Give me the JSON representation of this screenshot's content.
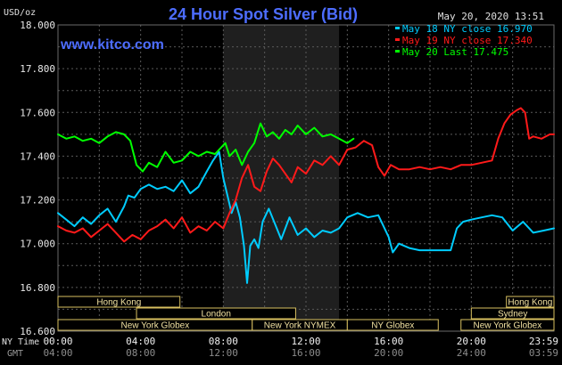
{
  "chart_data": {
    "type": "line",
    "title": "24 Hour Spot Silver (Bid)",
    "brand": "www.kitco.com",
    "timestamp": "May 20, 2020 13:51",
    "ylabel": "USD/oz",
    "ylim": [
      16.6,
      18.0
    ],
    "yticks": [
      "16.600",
      "16.800",
      "17.000",
      "17.200",
      "17.400",
      "17.600",
      "17.800",
      "18.000"
    ],
    "xlim": [
      0,
      24
    ],
    "xticks_ny": [
      "00:00",
      "04:00",
      "08:00",
      "12:00",
      "16:00",
      "20:00",
      "23:59"
    ],
    "xticks_gmt": [
      "04:00",
      "08:00",
      "12:00",
      "16:00",
      "20:00",
      "24:00",
      "03:59"
    ],
    "row_label_ny": "NY Time",
    "row_label_gmt": "GMT",
    "grid": true,
    "legend": "top-right",
    "highlight_hours": [
      8.0,
      13.6
    ],
    "sessions": [
      {
        "label": "Hong Kong",
        "start": 0.0,
        "end": 5.9,
        "row": 0
      },
      {
        "label": "London",
        "start": 3.8,
        "end": 11.5,
        "row": 1
      },
      {
        "label": "New York Globex",
        "start": 0.0,
        "end": 9.4,
        "row": 2
      },
      {
        "label": "New York NYMEX",
        "start": 9.4,
        "end": 14.0,
        "row": 2
      },
      {
        "label": "NY Globex",
        "start": 14.0,
        "end": 18.4,
        "row": 2
      },
      {
        "label": "Hong Kong",
        "start": 21.7,
        "end": 24.0,
        "row": 0
      },
      {
        "label": "Sydney",
        "start": 20.0,
        "end": 24.0,
        "row": 1
      },
      {
        "label": "New York Globex",
        "start": 19.5,
        "end": 24.0,
        "row": 2
      }
    ],
    "series": [
      {
        "name": "May 18 NY close 16.970",
        "color": "#00ccff",
        "x": [
          0,
          0.4,
          0.8,
          1.2,
          1.6,
          2.0,
          2.4,
          2.8,
          3.2,
          3.4,
          3.7,
          4.0,
          4.4,
          4.8,
          5.2,
          5.6,
          6.0,
          6.4,
          6.8,
          7.2,
          7.5,
          7.8,
          8.0,
          8.2,
          8.4,
          8.6,
          8.8,
          9.0,
          9.15,
          9.3,
          9.5,
          9.7,
          9.9,
          10.2,
          10.5,
          10.8,
          11.2,
          11.6,
          12.0,
          12.4,
          12.8,
          13.2,
          13.6,
          14.0,
          14.5,
          15.0,
          15.5,
          16.0,
          16.2,
          16.5,
          17.0,
          17.5,
          18.0,
          18.5,
          19.0,
          19.3,
          19.6,
          20.0,
          20.5,
          21.0,
          21.5,
          22.0,
          22.5,
          23.0,
          23.5,
          24.0
        ],
        "y": [
          17.14,
          17.11,
          17.08,
          17.12,
          17.09,
          17.13,
          17.16,
          17.1,
          17.17,
          17.22,
          17.21,
          17.25,
          17.27,
          17.25,
          17.26,
          17.24,
          17.29,
          17.23,
          17.26,
          17.33,
          17.38,
          17.42,
          17.3,
          17.22,
          17.14,
          17.19,
          17.12,
          16.99,
          16.82,
          16.99,
          17.02,
          16.98,
          17.1,
          17.16,
          17.09,
          17.02,
          17.12,
          17.04,
          17.07,
          17.03,
          17.06,
          17.05,
          17.07,
          17.12,
          17.14,
          17.12,
          17.13,
          17.03,
          16.96,
          17.0,
          16.98,
          16.97,
          16.97,
          16.97,
          16.97,
          17.07,
          17.1,
          17.11,
          17.12,
          17.13,
          17.12,
          17.06,
          17.1,
          17.05,
          17.06,
          17.07
        ]
      },
      {
        "name": "May 19 NY close 17.340",
        "color": "#ff1a1a",
        "x": [
          0,
          0.4,
          0.8,
          1.2,
          1.6,
          2.0,
          2.4,
          2.8,
          3.2,
          3.6,
          4.0,
          4.4,
          4.8,
          5.2,
          5.6,
          6.0,
          6.4,
          6.8,
          7.2,
          7.6,
          8.0,
          8.3,
          8.6,
          8.9,
          9.2,
          9.5,
          9.8,
          10.1,
          10.4,
          10.7,
          11.0,
          11.3,
          11.6,
          12.0,
          12.4,
          12.8,
          13.2,
          13.6,
          14.0,
          14.4,
          14.8,
          15.2,
          15.5,
          15.8,
          16.1,
          16.5,
          17.0,
          17.5,
          18.0,
          18.5,
          19.0,
          19.5,
          20.0,
          20.5,
          21.0,
          21.3,
          21.6,
          21.9,
          22.2,
          22.4,
          22.6,
          22.8,
          23.0,
          23.4,
          23.8,
          24.0
        ],
        "y": [
          17.08,
          17.06,
          17.05,
          17.07,
          17.03,
          17.06,
          17.09,
          17.05,
          17.01,
          17.04,
          17.02,
          17.06,
          17.08,
          17.11,
          17.07,
          17.12,
          17.05,
          17.08,
          17.06,
          17.1,
          17.07,
          17.14,
          17.2,
          17.3,
          17.36,
          17.26,
          17.24,
          17.33,
          17.39,
          17.36,
          17.32,
          17.28,
          17.35,
          17.32,
          17.38,
          17.36,
          17.4,
          17.36,
          17.43,
          17.44,
          17.47,
          17.45,
          17.35,
          17.31,
          17.36,
          17.34,
          17.34,
          17.35,
          17.34,
          17.35,
          17.34,
          17.36,
          17.36,
          17.37,
          17.38,
          17.48,
          17.55,
          17.59,
          17.61,
          17.62,
          17.6,
          17.48,
          17.49,
          17.48,
          17.5,
          17.5
        ]
      },
      {
        "name": "May 20 Last 17.475",
        "color": "#00ff00",
        "x": [
          0,
          0.4,
          0.8,
          1.2,
          1.6,
          2.0,
          2.4,
          2.8,
          3.2,
          3.5,
          3.8,
          4.1,
          4.4,
          4.8,
          5.2,
          5.6,
          6.0,
          6.4,
          6.8,
          7.2,
          7.6,
          7.9,
          8.1,
          8.3,
          8.6,
          8.9,
          9.2,
          9.5,
          9.8,
          10.1,
          10.4,
          10.7,
          11.0,
          11.3,
          11.6,
          12.0,
          12.4,
          12.8,
          13.2,
          13.6,
          14.0,
          14.3
        ],
        "y": [
          17.5,
          17.48,
          17.49,
          17.47,
          17.48,
          17.46,
          17.49,
          17.51,
          17.5,
          17.47,
          17.36,
          17.33,
          17.37,
          17.35,
          17.42,
          17.37,
          17.38,
          17.42,
          17.4,
          17.42,
          17.41,
          17.44,
          17.46,
          17.4,
          17.43,
          17.36,
          17.42,
          17.46,
          17.55,
          17.49,
          17.51,
          17.48,
          17.52,
          17.5,
          17.54,
          17.5,
          17.53,
          17.49,
          17.5,
          17.48,
          17.46,
          17.48
        ]
      }
    ]
  }
}
